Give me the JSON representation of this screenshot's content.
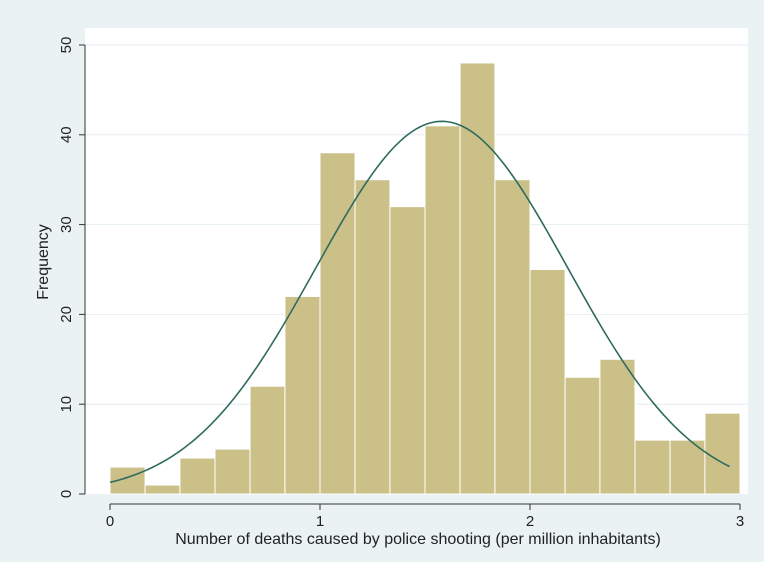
{
  "chart_data": {
    "type": "bar",
    "subtype": "histogram",
    "title": "",
    "xlabel": "Number of deaths caused by police shooting (per million inhabitants)",
    "ylabel": "Frequency",
    "xlim": [
      0,
      3
    ],
    "ylim": [
      0,
      50
    ],
    "x_ticks": [
      0,
      1,
      2,
      3
    ],
    "y_ticks": [
      0,
      10,
      20,
      30,
      40,
      50
    ],
    "grid": true,
    "legend": "none",
    "bin_width": 0.167,
    "bins": [
      {
        "start": 0.0,
        "end": 0.167,
        "count": 3
      },
      {
        "start": 0.167,
        "end": 0.333,
        "count": 1
      },
      {
        "start": 0.333,
        "end": 0.5,
        "count": 4
      },
      {
        "start": 0.5,
        "end": 0.667,
        "count": 5
      },
      {
        "start": 0.667,
        "end": 0.833,
        "count": 12
      },
      {
        "start": 0.833,
        "end": 1.0,
        "count": 22
      },
      {
        "start": 1.0,
        "end": 1.167,
        "count": 38
      },
      {
        "start": 1.167,
        "end": 1.333,
        "count": 35
      },
      {
        "start": 1.333,
        "end": 1.5,
        "count": 32
      },
      {
        "start": 1.5,
        "end": 1.667,
        "count": 41
      },
      {
        "start": 1.667,
        "end": 1.833,
        "count": 48
      },
      {
        "start": 1.833,
        "end": 2.0,
        "count": 35
      },
      {
        "start": 2.0,
        "end": 2.167,
        "count": 25
      },
      {
        "start": 2.167,
        "end": 2.333,
        "count": 13
      },
      {
        "start": 2.333,
        "end": 2.5,
        "count": 15
      },
      {
        "start": 2.5,
        "end": 2.667,
        "count": 6
      },
      {
        "start": 2.667,
        "end": 2.833,
        "count": 6
      },
      {
        "start": 2.833,
        "end": 3.0,
        "count": 9
      }
    ],
    "normal_curve": {
      "mean": 1.58,
      "sd": 0.6,
      "peak": 41.5,
      "x_range": [
        0,
        2.95
      ]
    },
    "colors": {
      "background": "#eaf2f3",
      "plot_background": "#ffffff",
      "bar_fill": "#cbc088",
      "bar_stroke": "#ffffff",
      "curve": "#2e6b5e",
      "grid": "#e6eef0",
      "axis": "#333333"
    }
  }
}
